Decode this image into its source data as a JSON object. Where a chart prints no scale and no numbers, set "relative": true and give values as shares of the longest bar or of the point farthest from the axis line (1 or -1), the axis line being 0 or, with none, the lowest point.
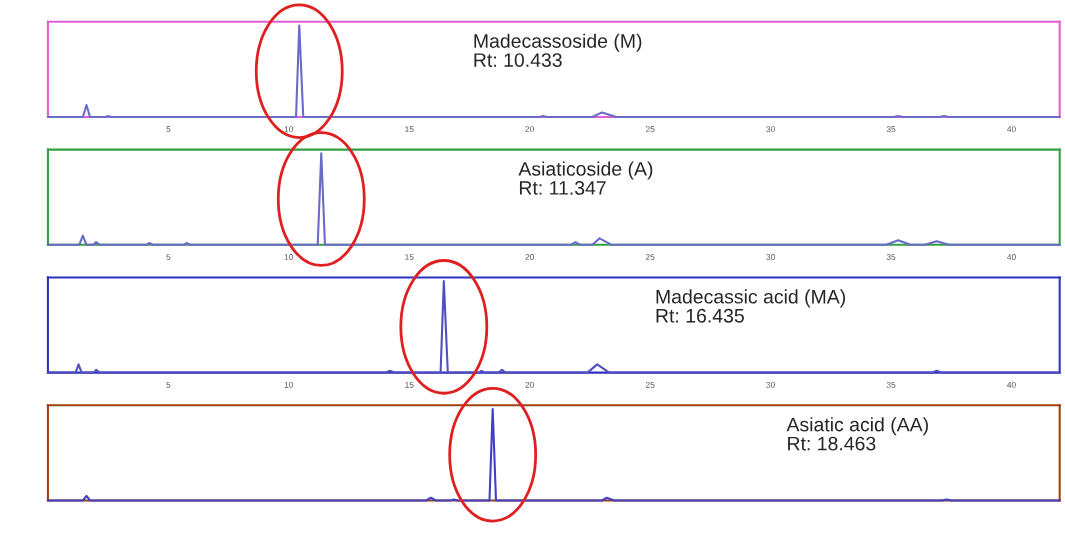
{
  "chart_data": [
    {
      "type": "line",
      "relative": true,
      "xlim": [
        0,
        42
      ],
      "xticks": [
        5,
        10,
        15,
        20,
        25,
        30,
        35,
        40
      ],
      "annotations": [
        "Madecassoside (M)",
        "Rt: 10.433"
      ],
      "series": [
        {
          "color": "#6a6ac8",
          "x": [
            0,
            1.45,
            1.6,
            1.75,
            2.4,
            2.5,
            2.65,
            10.3,
            10.433,
            10.6,
            20.4,
            20.55,
            20.7,
            22.6,
            23.0,
            23.6,
            35.1,
            35.3,
            35.5,
            37.0,
            37.2,
            37.4,
            42
          ],
          "values": [
            0,
            0,
            0.13,
            0,
            0,
            0.01,
            0,
            0,
            1,
            0,
            0,
            0.01,
            0,
            0,
            0.05,
            0,
            0,
            0.01,
            0,
            0,
            0.01,
            0,
            0
          ]
        }
      ]
    },
    {
      "type": "line",
      "relative": true,
      "xlim": [
        0,
        42
      ],
      "xticks": [
        5,
        10,
        15,
        20,
        25,
        30,
        35,
        40
      ],
      "annotations": [
        "Asiaticoside (A)",
        "Rt: 11.347"
      ],
      "series": [
        {
          "color": "#6a6ac8",
          "x": [
            0,
            1.3,
            1.45,
            1.6,
            1.9,
            2.0,
            2.15,
            4.1,
            4.2,
            4.35,
            5.65,
            5.75,
            5.9,
            11.2,
            11.347,
            11.5,
            21.7,
            21.9,
            22.1,
            22.6,
            22.9,
            23.4,
            34.8,
            35.3,
            35.8,
            36.4,
            36.9,
            37.4,
            42
          ],
          "values": [
            0,
            0,
            0.1,
            0,
            0,
            0.03,
            0,
            0,
            0.02,
            0,
            0,
            0.02,
            0,
            0,
            1,
            0,
            0,
            0.03,
            0,
            0,
            0.07,
            0,
            0,
            0.05,
            0,
            0,
            0.04,
            0,
            0
          ]
        }
      ]
    },
    {
      "type": "line",
      "relative": true,
      "xlim": [
        0,
        42
      ],
      "xticks": [
        5,
        10,
        15,
        20,
        25,
        30,
        35,
        40
      ],
      "annotations": [
        "Madecassic acid (MA)",
        "Rt: 16.435"
      ],
      "series": [
        {
          "color": "#5050c0",
          "x": [
            0,
            1.15,
            1.27,
            1.4,
            1.9,
            2.0,
            2.15,
            14.0,
            14.2,
            14.4,
            16.3,
            16.435,
            16.6,
            17.9,
            18.0,
            18.15,
            18.7,
            18.85,
            19.0,
            22.4,
            22.8,
            23.3,
            36.7,
            36.9,
            37.1,
            42
          ],
          "values": [
            0,
            0,
            0.09,
            0,
            0,
            0.03,
            0,
            0,
            0.02,
            0,
            0,
            1,
            0,
            0,
            0.02,
            0,
            0,
            0.03,
            0,
            0,
            0.09,
            0,
            0,
            0.02,
            0,
            0
          ]
        }
      ]
    },
    {
      "type": "line",
      "relative": true,
      "xlim": [
        0,
        42
      ],
      "xticks": [
        5,
        10,
        15,
        20,
        25,
        30,
        35,
        40
      ],
      "tick_labels": false,
      "annotations": [
        "Asiatic acid (AA)",
        "Rt: 18.463"
      ],
      "series": [
        {
          "color": "#4040c0",
          "x": [
            0,
            1.45,
            1.6,
            1.75,
            15.7,
            15.9,
            16.1,
            16.7,
            16.85,
            17.0,
            18.33,
            18.463,
            18.6,
            23.0,
            23.2,
            23.5,
            37.1,
            37.3,
            37.5,
            42
          ],
          "values": [
            0,
            0,
            0.05,
            0,
            0,
            0.03,
            0,
            0,
            0.01,
            0,
            0,
            1,
            0,
            0,
            0.03,
            0,
            0,
            0.01,
            0,
            0
          ]
        }
      ]
    }
  ]
}
